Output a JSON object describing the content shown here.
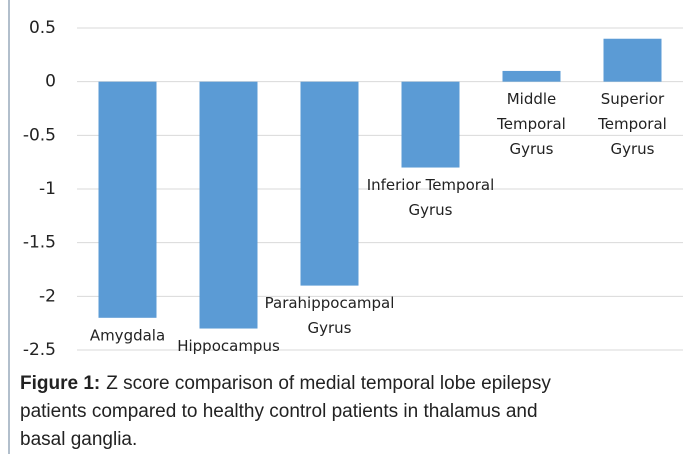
{
  "chart_data": {
    "type": "bar",
    "categories": [
      [
        "Amygdala"
      ],
      [
        "Hippocampus"
      ],
      [
        "Parahippocampal",
        "Gyrus"
      ],
      [
        "Inferior Temporal",
        "Gyrus"
      ],
      [
        "Middle",
        "Temporal",
        "Gyrus"
      ],
      [
        "Superior",
        "Temporal",
        "Gyrus"
      ]
    ],
    "values": [
      -2.2,
      -2.3,
      -1.9,
      -0.8,
      0.1,
      0.4
    ],
    "color": "#5b9bd5",
    "ylim": [
      -2.5,
      0.5
    ],
    "yticks": [
      0.5,
      0,
      -0.5,
      -1,
      -1.5,
      -2,
      -2.5
    ],
    "grid": true
  },
  "caption_label": "Figure 1:",
  "caption_lines": [
    "Z score comparison of medial temporal lobe epilepsy",
    "patients compared to healthy control patients in thalamus and",
    "basal ganglia."
  ]
}
